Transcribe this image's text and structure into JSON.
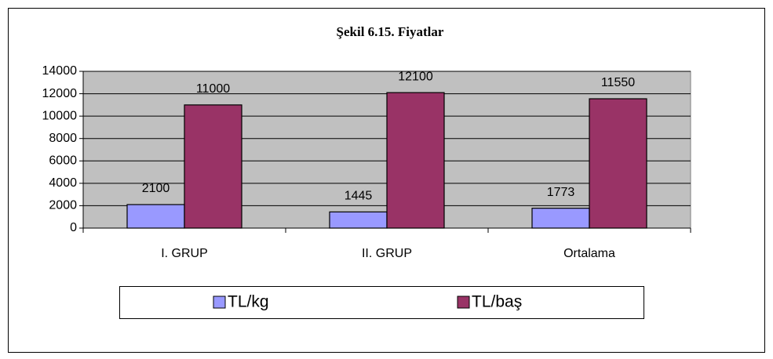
{
  "chart_data": {
    "type": "bar",
    "title": "Şekil 6.15. Fiyatlar",
    "categories": [
      "I. GRUP",
      "II. GRUP",
      "Ortalama"
    ],
    "series": [
      {
        "name": "TL/kg",
        "color": "#9999ff",
        "values": [
          2100,
          1445,
          1773
        ]
      },
      {
        "name": "TL/baş",
        "color": "#993366",
        "values": [
          11000,
          12100,
          11550
        ]
      }
    ],
    "ylim": [
      0,
      14000
    ],
    "yticks": [
      0,
      2000,
      4000,
      6000,
      8000,
      10000,
      12000,
      14000
    ],
    "grid": true,
    "legend": "bottom"
  }
}
